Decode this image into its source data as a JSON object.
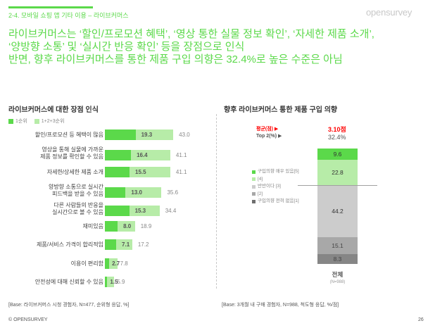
{
  "header": {
    "section_label": "2-4. 모바일 쇼핑 앱 기타 이용 – 라이브커머스",
    "logo": "opensurvey",
    "headline_lines": [
      "라이브커머스는 ‘할인/프로모션 혜택’, ‘영상 통한 실물 정보 확인’, ‘자세한 제품 소개’,",
      "‘양방향 소통’ 및 ‘실시간 반응 확인’ 등을 장점으로 인식",
      "반면, 향후 라이브커머스를 통한 제품 구입 의향은 32.4%로 높은 수준은 아님"
    ]
  },
  "colors": {
    "accent": "#5bd94a",
    "light_green": "#b7eca8",
    "gray3": "#cccccc",
    "gray2": "#a8a8a8",
    "gray1": "#868686",
    "red": "#ff0000"
  },
  "left_chart": {
    "title": "라이브커머스에 대한 장점 인식",
    "legend": [
      "1순위",
      "1+2+3순위"
    ],
    "base": "[Base: 라이브커머스 시청 경험자, N=477, 순위형 응답, %]"
  },
  "right_chart": {
    "title": "향후 라이브커머스 통한 제품 구입 의향",
    "avg_label": "평균(점) ▶",
    "avg_value": "3.10점",
    "top2_label": "Top 2(%) ▶",
    "top2_value": "32.4%",
    "legend": [
      "구입의향 매우 있음[5]",
      "[4]",
      "반반이다 [3]",
      "[2]",
      "구입의향 전혀 없음[1]"
    ],
    "category": "전체",
    "n": "(N=988)",
    "base": "[Base: 3개월 내 구매 경험자, N=988, 척도형 응답, %/점]"
  },
  "chart_data": [
    {
      "type": "bar",
      "orientation": "horizontal",
      "title": "라이브커머스에 대한 장점 인식",
      "categories": [
        "할인/프로모션 등 혜택이 많음",
        "영상을 통해 실물에 가까운 제품 정보를 확인할 수 있음",
        "자세한/상세한 제품 소개",
        "양방향 소통으로 실시간 피드백을 받을 수 있음",
        "다른 사람들의 반응을 실시간으로 볼 수 있음",
        "재미있음",
        "제품/서비스 가격이 합리적임",
        "이용이 편리함",
        "안전성에 대해 신뢰할 수 있음"
      ],
      "series": [
        {
          "name": "1순위",
          "values": [
            19.3,
            16.4,
            15.5,
            13.0,
            15.3,
            8.0,
            7.1,
            2.7,
            1.5
          ]
        },
        {
          "name": "1+2+3순위",
          "values": [
            43.0,
            41.1,
            41.1,
            35.6,
            34.4,
            18.9,
            17.2,
            7.8,
            5.9
          ]
        }
      ],
      "legend_position": "top-left",
      "grid": false
    },
    {
      "type": "bar",
      "stacked": true,
      "title": "향후 라이브커머스 통한 제품 구입 의향",
      "categories": [
        "전체"
      ],
      "series": [
        {
          "name": "구입의향 매우 있음[5]",
          "values": [
            9.6
          ]
        },
        {
          "name": "[4]",
          "values": [
            22.8
          ]
        },
        {
          "name": "반반이다 [3]",
          "values": [
            44.2
          ]
        },
        {
          "name": "[2]",
          "values": [
            15.1
          ]
        },
        {
          "name": "구입의향 전혀 없음[1]",
          "values": [
            8.3
          ]
        }
      ],
      "annotations": {
        "평균(점)": "3.10점",
        "Top 2(%)": "32.4%",
        "N": 988
      },
      "legend_position": "left"
    }
  ],
  "rows": [
    {
      "label": [
        "할인/프로모션 등 혜택이 많음"
      ],
      "v1": "19.3",
      "v2": "43.0",
      "n1": 19.3,
      "n2": 43.0
    },
    {
      "label": [
        "영상을 통해 실물에 가까운",
        "제품 정보를 확인할 수 있음"
      ],
      "v1": "16.4",
      "v2": "41.1",
      "n1": 16.4,
      "n2": 41.1
    },
    {
      "label": [
        "자세한/상세한 제품 소개"
      ],
      "v1": "15.5",
      "v2": "41.1",
      "n1": 15.5,
      "n2": 41.1
    },
    {
      "label": [
        "양방향 소통으로 실시간",
        "피드백을 받을 수 있음"
      ],
      "v1": "13.0",
      "v2": "35.6",
      "n1": 13.0,
      "n2": 35.6
    },
    {
      "label": [
        "다른 사람들의 반응을",
        "실시간으로 볼 수 있음"
      ],
      "v1": "15.3",
      "v2": "34.4",
      "n1": 15.3,
      "n2": 34.4
    },
    {
      "label": [
        "재미있음"
      ],
      "v1": "8.0",
      "v2": "18.9",
      "n1": 8.0,
      "n2": 18.9
    },
    {
      "label": [
        "제품/서비스 가격이 합리적임"
      ],
      "v1": "7.1",
      "v2": "17.2",
      "n1": 7.1,
      "n2": 17.2
    },
    {
      "label": [
        "이용이 편리함"
      ],
      "v1": "2.7",
      "v2": "7.8",
      "n1": 2.7,
      "n2": 7.8
    },
    {
      "label": [
        "안전성에 대해 신뢰할 수 있음"
      ],
      "v1": "1.5",
      "v2": "5.9",
      "n1": 1.5,
      "n2": 5.9
    }
  ],
  "stack_segments": [
    {
      "value": "9.6",
      "n": 9.6,
      "color": "#5bd94a"
    },
    {
      "value": "22.8",
      "n": 22.8,
      "color": "#b7eca8"
    },
    {
      "value": "44.2",
      "n": 44.2,
      "color": "#cccccc"
    },
    {
      "value": "15.1",
      "n": 15.1,
      "color": "#a8a8a8"
    },
    {
      "value": "8.3",
      "n": 8.3,
      "color": "#868686"
    }
  ],
  "footer": {
    "copyright": "© OPENSURVEY",
    "page_number": "26"
  }
}
